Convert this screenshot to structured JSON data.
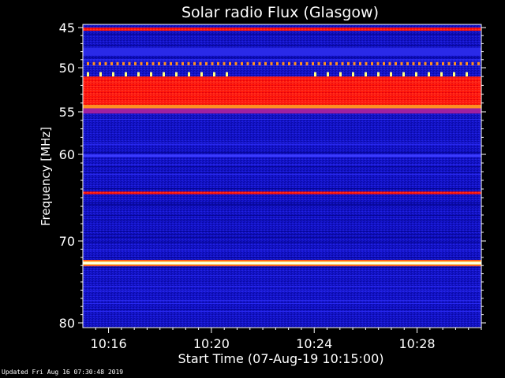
{
  "chart_data": {
    "type": "heatmap",
    "title": "Solar radio Flux (Glasgow)",
    "xlabel": "Start Time (07-Aug-19 10:15:00)",
    "ylabel": "Frequency [MHz]",
    "x_range_minutes": [
      "10:15:00",
      "10:30:00"
    ],
    "x_ticks": [
      "10:16",
      "10:20",
      "10:24",
      "10:28"
    ],
    "x_tick_minutes": [
      16,
      20,
      24,
      28
    ],
    "ylim": [
      45,
      80
    ],
    "y_ticks": [
      45,
      50,
      55,
      60,
      70,
      80
    ],
    "y_scale": "nonlinear (compressed toward high frequency)",
    "y_anchor_pixels_note": "frequency axis mapped via tick positions",
    "bands": [
      {
        "freq_low": 45.0,
        "freq_high": 45.4,
        "level": "red"
      },
      {
        "freq_low": 47.5,
        "freq_high": 48.5,
        "level": "blue-mid"
      },
      {
        "freq_low": 49.3,
        "freq_high": 49.6,
        "level": "orange-dotted"
      },
      {
        "freq_low": 50.5,
        "freq_high": 50.9,
        "level": "yellow-dotted"
      },
      {
        "freq_low": 51.0,
        "freq_high": 54.2,
        "level": "red"
      },
      {
        "freq_low": 54.2,
        "freq_high": 54.6,
        "level": "orange"
      },
      {
        "freq_low": 54.6,
        "freq_high": 55.2,
        "level": "purple"
      },
      {
        "freq_low": 60.0,
        "freq_high": 60.3,
        "level": "blue-bright"
      },
      {
        "freq_low": 64.3,
        "freq_high": 64.6,
        "level": "red"
      },
      {
        "freq_low": 72.5,
        "freq_high": 72.9,
        "level": "white-yellow"
      }
    ],
    "colors": {
      "background": "#000000",
      "plot_base": "#1010c0",
      "dark_blue": "#000080",
      "red": "#ff1010",
      "orange": "#ff9020",
      "yellow": "#ffff80"
    }
  },
  "footer": {
    "updated": "Updated Fri Aug 16 07:30:48 2019"
  }
}
